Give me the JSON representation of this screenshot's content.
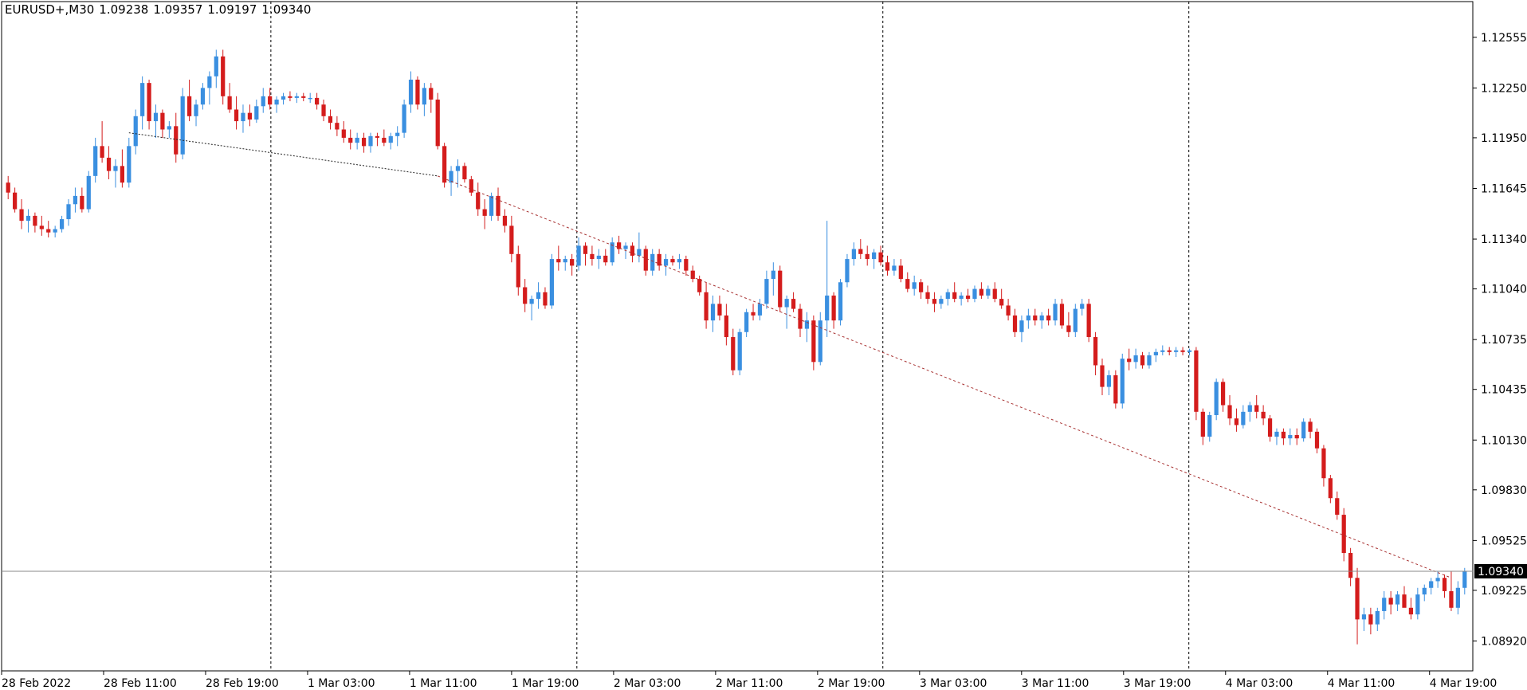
{
  "header": {
    "symbol": "EURUSD+,M30",
    "open": "1.09238",
    "high": "1.09357",
    "low": "1.09197",
    "close": "1.09340"
  },
  "colors": {
    "bull": "#3a8fe0",
    "bear": "#d41c1c",
    "grid": "#000000",
    "trend": "#a83232",
    "price_box_bg": "#000000",
    "price_box_text": "#ffffff",
    "price_line": "#8a8a8a"
  },
  "chart_data": {
    "type": "candlestick",
    "title": "",
    "ylim": [
      1.0874,
      1.1277
    ],
    "y_ticks": [
      "1.12555",
      "1.12250",
      "1.11950",
      "1.11645",
      "1.11340",
      "1.11040",
      "1.10735",
      "1.10435",
      "1.10130",
      "1.09830",
      "1.09525",
      "1.09225",
      "1.08920"
    ],
    "x_labels": [
      "28 Feb 2022",
      "28 Feb 11:00",
      "28 Feb 19:00",
      "1 Mar 03:00",
      "1 Mar 11:00",
      "1 Mar 19:00",
      "2 Mar 03:00",
      "2 Mar 11:00",
      "2 Mar 19:00",
      "3 Mar 03:00",
      "3 Mar 11:00",
      "3 Mar 19:00",
      "4 Mar 03:00",
      "4 Mar 11:00",
      "4 Mar 19:00"
    ],
    "current_price": "1.09340",
    "current_price_value": 1.0934,
    "candles": [
      [
        1.1168,
        1.1172,
        1.1158,
        1.1162
      ],
      [
        1.1162,
        1.1165,
        1.115,
        1.1152
      ],
      [
        1.1152,
        1.1158,
        1.114,
        1.1145
      ],
      [
        1.1145,
        1.1152,
        1.1138,
        1.1148
      ],
      [
        1.1148,
        1.115,
        1.1138,
        1.1142
      ],
      [
        1.1142,
        1.1148,
        1.1136,
        1.114
      ],
      [
        1.114,
        1.1145,
        1.1135,
        1.1138
      ],
      [
        1.1138,
        1.1142,
        1.1135,
        1.114
      ],
      [
        1.114,
        1.1148,
        1.1138,
        1.1146
      ],
      [
        1.1146,
        1.1158,
        1.1142,
        1.1155
      ],
      [
        1.1155,
        1.1165,
        1.115,
        1.116
      ],
      [
        1.116,
        1.1165,
        1.115,
        1.1152
      ],
      [
        1.1152,
        1.1175,
        1.115,
        1.1172
      ],
      [
        1.1172,
        1.1195,
        1.1168,
        1.119
      ],
      [
        1.119,
        1.1205,
        1.118,
        1.1183
      ],
      [
        1.1183,
        1.119,
        1.117,
        1.1175
      ],
      [
        1.1175,
        1.1182,
        1.1165,
        1.1178
      ],
      [
        1.1178,
        1.1188,
        1.1165,
        1.1168
      ],
      [
        1.1168,
        1.1195,
        1.1165,
        1.119
      ],
      [
        1.119,
        1.1212,
        1.1185,
        1.1208
      ],
      [
        1.1208,
        1.1232,
        1.12,
        1.1228
      ],
      [
        1.1228,
        1.123,
        1.12,
        1.1205
      ],
      [
        1.1205,
        1.1215,
        1.1195,
        1.121
      ],
      [
        1.121,
        1.1212,
        1.1195,
        1.12
      ],
      [
        1.12,
        1.1205,
        1.1195,
        1.1202
      ],
      [
        1.1202,
        1.121,
        1.118,
        1.1185
      ],
      [
        1.1185,
        1.1225,
        1.1182,
        1.122
      ],
      [
        1.122,
        1.123,
        1.1205,
        1.1208
      ],
      [
        1.1208,
        1.1218,
        1.1202,
        1.1215
      ],
      [
        1.1215,
        1.1228,
        1.1212,
        1.1225
      ],
      [
        1.1225,
        1.1235,
        1.1215,
        1.1232
      ],
      [
        1.1232,
        1.1248,
        1.1225,
        1.1244
      ],
      [
        1.1244,
        1.1248,
        1.1215,
        1.122
      ],
      [
        1.122,
        1.1228,
        1.121,
        1.1212
      ],
      [
        1.1212,
        1.122,
        1.12,
        1.1205
      ],
      [
        1.1205,
        1.1215,
        1.1198,
        1.121
      ],
      [
        1.121,
        1.1215,
        1.1202,
        1.1206
      ],
      [
        1.1206,
        1.1218,
        1.1204,
        1.1214
      ],
      [
        1.1214,
        1.1225,
        1.121,
        1.122
      ],
      [
        1.122,
        1.1225,
        1.1212,
        1.1215
      ],
      [
        1.1215,
        1.122,
        1.121,
        1.1218
      ],
      [
        1.1218,
        1.1222,
        1.1215,
        1.122
      ],
      [
        1.122,
        1.1223,
        1.1217,
        1.1219
      ],
      [
        1.1219,
        1.1222,
        1.1216,
        1.122
      ],
      [
        1.122,
        1.1222,
        1.1217,
        1.1219
      ],
      [
        1.1219,
        1.1222,
        1.1216,
        1.1219
      ],
      [
        1.1219,
        1.1222,
        1.1212,
        1.1215
      ],
      [
        1.1215,
        1.1218,
        1.1205,
        1.1208
      ],
      [
        1.1208,
        1.1212,
        1.12,
        1.1204
      ],
      [
        1.1204,
        1.1208,
        1.1196,
        1.12
      ],
      [
        1.12,
        1.1205,
        1.1192,
        1.1195
      ],
      [
        1.1195,
        1.12,
        1.1188,
        1.1192
      ],
      [
        1.1192,
        1.1198,
        1.1188,
        1.1195
      ],
      [
        1.1195,
        1.1198,
        1.1186,
        1.119
      ],
      [
        1.119,
        1.1198,
        1.1186,
        1.1196
      ],
      [
        1.1196,
        1.1198,
        1.119,
        1.1195
      ],
      [
        1.1195,
        1.12,
        1.119,
        1.1192
      ],
      [
        1.1192,
        1.1198,
        1.1188,
        1.1196
      ],
      [
        1.1196,
        1.1202,
        1.119,
        1.1198
      ],
      [
        1.1198,
        1.1218,
        1.1195,
        1.1215
      ],
      [
        1.1215,
        1.1235,
        1.121,
        1.123
      ],
      [
        1.123,
        1.1232,
        1.1212,
        1.1215
      ],
      [
        1.1215,
        1.1228,
        1.1208,
        1.1225
      ],
      [
        1.1225,
        1.1228,
        1.121,
        1.1218
      ],
      [
        1.1218,
        1.1222,
        1.1188,
        1.119
      ],
      [
        1.119,
        1.1192,
        1.1165,
        1.1168
      ],
      [
        1.1168,
        1.1178,
        1.116,
        1.1175
      ],
      [
        1.1175,
        1.1182,
        1.1165,
        1.1178
      ],
      [
        1.1178,
        1.118,
        1.1168,
        1.117
      ],
      [
        1.117,
        1.1172,
        1.116,
        1.1162
      ],
      [
        1.1162,
        1.1168,
        1.1148,
        1.1152
      ],
      [
        1.1152,
        1.1158,
        1.114,
        1.1148
      ],
      [
        1.1148,
        1.1162,
        1.1145,
        1.116
      ],
      [
        1.116,
        1.1165,
        1.1145,
        1.1148
      ],
      [
        1.1148,
        1.1152,
        1.1138,
        1.1142
      ],
      [
        1.1142,
        1.1148,
        1.112,
        1.1125
      ],
      [
        1.1125,
        1.113,
        1.11,
        1.1105
      ],
      [
        1.1105,
        1.111,
        1.109,
        1.1095
      ],
      [
        1.1095,
        1.11,
        1.1085,
        1.1098
      ],
      [
        1.1098,
        1.1108,
        1.1092,
        1.1102
      ],
      [
        1.1102,
        1.1105,
        1.1092,
        1.1094
      ],
      [
        1.1094,
        1.1125,
        1.1092,
        1.1122
      ],
      [
        1.1122,
        1.113,
        1.1115,
        1.112
      ],
      [
        1.112,
        1.1124,
        1.1115,
        1.1122
      ],
      [
        1.1122,
        1.1125,
        1.1112,
        1.1118
      ],
      [
        1.1118,
        1.1135,
        1.1115,
        1.113
      ],
      [
        1.113,
        1.1132,
        1.1118,
        1.1125
      ],
      [
        1.1125,
        1.113,
        1.1118,
        1.1122
      ],
      [
        1.1122,
        1.1128,
        1.1116,
        1.1124
      ],
      [
        1.1124,
        1.1128,
        1.1118,
        1.112
      ],
      [
        1.112,
        1.1135,
        1.1118,
        1.1132
      ],
      [
        1.1132,
        1.1136,
        1.1125,
        1.1128
      ],
      [
        1.1128,
        1.1132,
        1.1122,
        1.113
      ],
      [
        1.113,
        1.1132,
        1.112,
        1.1124
      ],
      [
        1.1124,
        1.1138,
        1.112,
        1.1128
      ],
      [
        1.1128,
        1.113,
        1.1112,
        1.1115
      ],
      [
        1.1115,
        1.1128,
        1.1112,
        1.1125
      ],
      [
        1.1125,
        1.1128,
        1.1115,
        1.1118
      ],
      [
        1.1118,
        1.1125,
        1.1112,
        1.1122
      ],
      [
        1.1122,
        1.1124,
        1.1118,
        1.112
      ],
      [
        1.112,
        1.1125,
        1.1116,
        1.1122
      ],
      [
        1.1122,
        1.1124,
        1.1112,
        1.1115
      ],
      [
        1.1115,
        1.1118,
        1.1108,
        1.111
      ],
      [
        1.111,
        1.1112,
        1.11,
        1.1102
      ],
      [
        1.1102,
        1.1108,
        1.108,
        1.1085
      ],
      [
        1.1085,
        1.11,
        1.1078,
        1.1095
      ],
      [
        1.1095,
        1.11,
        1.1085,
        1.1088
      ],
      [
        1.1088,
        1.1095,
        1.107,
        1.1075
      ],
      [
        1.1075,
        1.108,
        1.1052,
        1.1055
      ],
      [
        1.1055,
        1.108,
        1.1052,
        1.1078
      ],
      [
        1.1078,
        1.1092,
        1.1075,
        1.109
      ],
      [
        1.109,
        1.1095,
        1.1085,
        1.1088
      ],
      [
        1.1088,
        1.1098,
        1.1085,
        1.1095
      ],
      [
        1.1095,
        1.1115,
        1.1092,
        1.111
      ],
      [
        1.111,
        1.112,
        1.11,
        1.1115
      ],
      [
        1.1115,
        1.1118,
        1.109,
        1.1093
      ],
      [
        1.1093,
        1.11,
        1.108,
        1.1098
      ],
      [
        1.1098,
        1.1102,
        1.109,
        1.1092
      ],
      [
        1.1092,
        1.1095,
        1.1075,
        1.108
      ],
      [
        1.108,
        1.109,
        1.1072,
        1.1085
      ],
      [
        1.1085,
        1.1088,
        1.1055,
        1.106
      ],
      [
        1.106,
        1.109,
        1.1058,
        1.1085
      ],
      [
        1.1085,
        1.1145,
        1.1075,
        1.11
      ],
      [
        1.11,
        1.1102,
        1.108,
        1.1085
      ],
      [
        1.1085,
        1.111,
        1.1082,
        1.1108
      ],
      [
        1.1108,
        1.1125,
        1.1105,
        1.1122
      ],
      [
        1.1122,
        1.1132,
        1.1118,
        1.1128
      ],
      [
        1.1128,
        1.1134,
        1.1122,
        1.1125
      ],
      [
        1.1125,
        1.113,
        1.1118,
        1.1122
      ],
      [
        1.1122,
        1.1128,
        1.1116,
        1.1126
      ],
      [
        1.1126,
        1.113,
        1.1118,
        1.112
      ],
      [
        1.112,
        1.1124,
        1.1112,
        1.1115
      ],
      [
        1.1115,
        1.1122,
        1.1112,
        1.1118
      ],
      [
        1.1118,
        1.1122,
        1.1108,
        1.111
      ],
      [
        1.111,
        1.1114,
        1.1102,
        1.1104
      ],
      [
        1.1104,
        1.1112,
        1.11,
        1.1108
      ],
      [
        1.1108,
        1.111,
        1.1098,
        1.1102
      ],
      [
        1.1102,
        1.1106,
        1.1095,
        1.1098
      ],
      [
        1.1098,
        1.1102,
        1.109,
        1.1095
      ],
      [
        1.1095,
        1.11,
        1.1092,
        1.1098
      ],
      [
        1.1098,
        1.1104,
        1.1094,
        1.1102
      ],
      [
        1.1102,
        1.1108,
        1.1096,
        1.1098
      ],
      [
        1.1098,
        1.1102,
        1.1094,
        1.11
      ],
      [
        1.11,
        1.1104,
        1.1096,
        1.1098
      ],
      [
        1.1098,
        1.1106,
        1.1096,
        1.1104
      ],
      [
        1.1104,
        1.1108,
        1.1098,
        1.11
      ],
      [
        1.11,
        1.1106,
        1.1098,
        1.1104
      ],
      [
        1.1104,
        1.1108,
        1.1096,
        1.1098
      ],
      [
        1.1098,
        1.1104,
        1.1092,
        1.1094
      ],
      [
        1.1094,
        1.1098,
        1.1085,
        1.1088
      ],
      [
        1.1088,
        1.1092,
        1.1075,
        1.1078
      ],
      [
        1.1078,
        1.1088,
        1.1072,
        1.1085
      ],
      [
        1.1085,
        1.1092,
        1.108,
        1.1088
      ],
      [
        1.1088,
        1.1092,
        1.1082,
        1.1085
      ],
      [
        1.1085,
        1.109,
        1.108,
        1.1088
      ],
      [
        1.1088,
        1.1092,
        1.1082,
        1.1085
      ],
      [
        1.1085,
        1.1098,
        1.1082,
        1.1095
      ],
      [
        1.1095,
        1.1098,
        1.108,
        1.1082
      ],
      [
        1.1082,
        1.109,
        1.1075,
        1.1078
      ],
      [
        1.1078,
        1.1095,
        1.1075,
        1.1092
      ],
      [
        1.1092,
        1.1098,
        1.1088,
        1.1095
      ],
      [
        1.1095,
        1.1098,
        1.1072,
        1.1075
      ],
      [
        1.1075,
        1.1078,
        1.1052,
        1.1058
      ],
      [
        1.1058,
        1.1062,
        1.104,
        1.1045
      ],
      [
        1.1045,
        1.1055,
        1.104,
        1.1052
      ],
      [
        1.1052,
        1.1055,
        1.1032,
        1.1035
      ],
      [
        1.1035,
        1.1065,
        1.1032,
        1.1062
      ],
      [
        1.1062,
        1.1068,
        1.1055,
        1.106
      ],
      [
        1.106,
        1.1068,
        1.1056,
        1.1064
      ],
      [
        1.1064,
        1.1066,
        1.1056,
        1.1058
      ],
      [
        1.1058,
        1.1066,
        1.1056,
        1.1064
      ],
      [
        1.1064,
        1.1068,
        1.106,
        1.1066
      ],
      [
        1.1066,
        1.107,
        1.1064,
        1.1067
      ],
      [
        1.1067,
        1.1069,
        1.1064,
        1.1066
      ],
      [
        1.1066,
        1.1069,
        1.1063,
        1.1067
      ],
      [
        1.1067,
        1.1069,
        1.1064,
        1.1066
      ],
      [
        1.1066,
        1.1068,
        1.1064,
        1.1067
      ],
      [
        1.1067,
        1.1069,
        1.1025,
        1.103
      ],
      [
        1.103,
        1.1032,
        1.101,
        1.1015
      ],
      [
        1.1015,
        1.103,
        1.1012,
        1.1028
      ],
      [
        1.1028,
        1.105,
        1.1025,
        1.1048
      ],
      [
        1.1048,
        1.105,
        1.103,
        1.1034
      ],
      [
        1.1034,
        1.104,
        1.1022,
        1.1026
      ],
      [
        1.1026,
        1.1032,
        1.1018,
        1.1022
      ],
      [
        1.1022,
        1.1034,
        1.102,
        1.103
      ],
      [
        1.103,
        1.1036,
        1.1024,
        1.1034
      ],
      [
        1.1034,
        1.104,
        1.1026,
        1.103
      ],
      [
        1.103,
        1.1034,
        1.1022,
        1.1026
      ],
      [
        1.1026,
        1.1028,
        1.1012,
        1.1015
      ],
      [
        1.1015,
        1.102,
        1.101,
        1.1018
      ],
      [
        1.1018,
        1.102,
        1.101,
        1.1014
      ],
      [
        1.1014,
        1.102,
        1.101,
        1.1016
      ],
      [
        1.1016,
        1.102,
        1.101,
        1.1014
      ],
      [
        1.1014,
        1.1026,
        1.1012,
        1.1024
      ],
      [
        1.1024,
        1.1026,
        1.1014,
        1.1018
      ],
      [
        1.1018,
        1.102,
        1.1005,
        1.1008
      ],
      [
        1.1008,
        1.101,
        1.0985,
        1.099
      ],
      [
        1.099,
        1.0992,
        1.0975,
        1.0978
      ],
      [
        1.0978,
        1.0982,
        1.0965,
        1.0968
      ],
      [
        1.0968,
        1.0972,
        1.094,
        1.0945
      ],
      [
        1.0945,
        1.0948,
        1.0925,
        1.093
      ],
      [
        1.093,
        1.0936,
        1.089,
        1.0905
      ],
      [
        1.0905,
        1.0912,
        1.0898,
        1.0908
      ],
      [
        1.0908,
        1.0912,
        1.0896,
        1.0902
      ],
      [
        1.0902,
        1.0912,
        1.0898,
        1.091
      ],
      [
        1.091,
        1.0922,
        1.0905,
        1.0918
      ],
      [
        1.0918,
        1.0922,
        1.0908,
        1.0914
      ],
      [
        1.0914,
        1.0922,
        1.091,
        1.092
      ],
      [
        1.092,
        1.0925,
        1.0915,
        1.0912
      ],
      [
        1.0912,
        1.0918,
        1.0905,
        1.0908
      ],
      [
        1.0908,
        1.0924,
        1.0905,
        1.092
      ],
      [
        1.092,
        1.0926,
        1.0916,
        1.0924
      ],
      [
        1.0924,
        1.093,
        1.092,
        1.0928
      ],
      [
        1.0928,
        1.0934,
        1.0924,
        1.093
      ],
      [
        1.093,
        1.0932,
        1.0918,
        1.0922
      ],
      [
        1.0922,
        1.0934,
        1.091,
        1.0912
      ],
      [
        1.0912,
        1.0928,
        1.0908,
        1.0924
      ],
      [
        1.0924,
        1.0936,
        1.092,
        1.0934
      ]
    ]
  }
}
